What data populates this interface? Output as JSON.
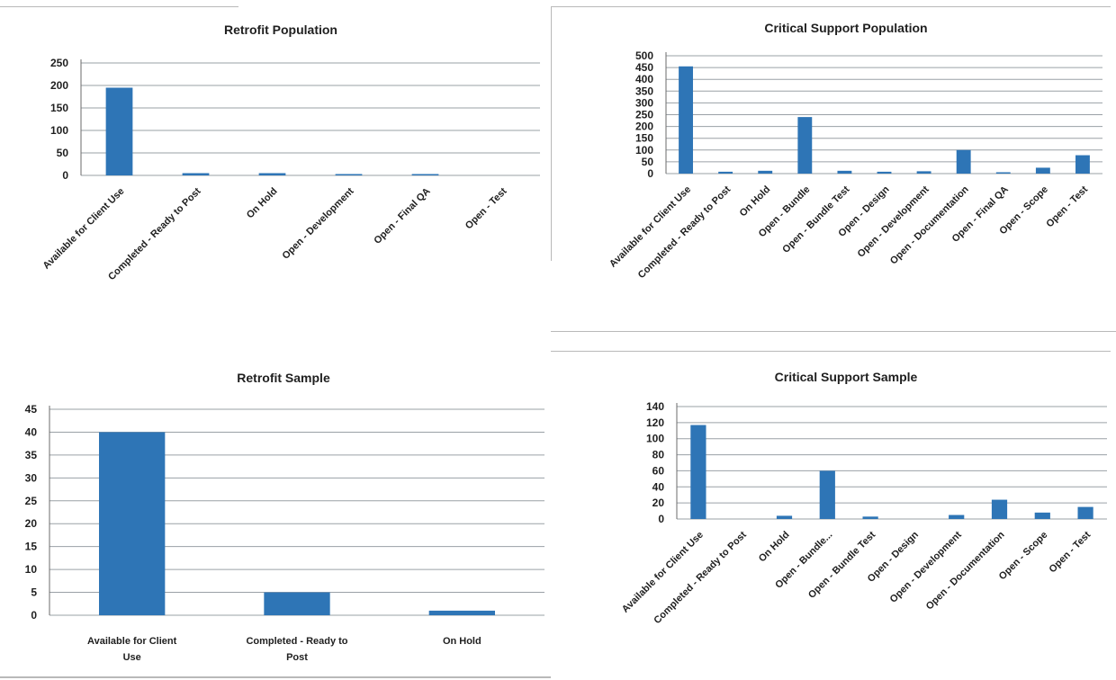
{
  "chart_data": [
    {
      "id": "retrofit-population",
      "type": "bar",
      "title": "Retrofit Population",
      "categories": [
        "Available for Client Use",
        "Completed - Ready to Post",
        "On Hold",
        "Open - Development",
        "Open - Final QA",
        "Open - Test"
      ],
      "values": [
        195,
        5,
        5,
        1,
        3,
        0
      ],
      "yticks": [
        0,
        50,
        100,
        150,
        200,
        250
      ],
      "ylim": [
        0,
        250
      ],
      "grid": true,
      "label_rotation": -45,
      "colors": {
        "bar": "#2e75b6"
      }
    },
    {
      "id": "critical-support-population",
      "type": "bar",
      "title": "Critical Support Population",
      "categories": [
        "Available for Client Use",
        "Completed - Ready to Post",
        "On Hold",
        "Open - Bundle",
        "Open - Bundle Test",
        "Open - Design",
        "Open - Development",
        "Open - Documentation",
        "Open - Final QA",
        "Open - Scope",
        "Open - Test"
      ],
      "values": [
        455,
        8,
        12,
        240,
        12,
        8,
        10,
        100,
        2,
        25,
        78
      ],
      "yticks": [
        0,
        50,
        100,
        150,
        200,
        250,
        300,
        350,
        400,
        450,
        500
      ],
      "ylim": [
        0,
        500
      ],
      "grid": true,
      "label_rotation": -45,
      "colors": {
        "bar": "#2e75b6"
      }
    },
    {
      "id": "retrofit-sample",
      "type": "bar",
      "title": "Retrofit Sample",
      "categories": [
        "Available for Client Use",
        "Completed - Ready to Post",
        "On Hold"
      ],
      "values": [
        40,
        5,
        1
      ],
      "yticks": [
        0,
        5,
        10,
        15,
        20,
        25,
        30,
        35,
        40,
        45
      ],
      "ylim": [
        0,
        45
      ],
      "grid": true,
      "label_rotation": 0,
      "colors": {
        "bar": "#2e75b6"
      }
    },
    {
      "id": "critical-support-sample",
      "type": "bar",
      "title": "Critical Support Sample",
      "categories": [
        "Available for Client Use",
        "Completed - Ready to Post",
        "On Hold",
        "Open - Bundle...",
        "Open - Bundle Test",
        "Open - Design",
        "Open - Development",
        "Open - Documentation",
        "Open - Scope",
        "Open - Test"
      ],
      "values": [
        117,
        0,
        4,
        60,
        3,
        0,
        5,
        24,
        8,
        15
      ],
      "yticks": [
        0,
        20,
        40,
        60,
        80,
        100,
        120,
        140
      ],
      "ylim": [
        0,
        140
      ],
      "grid": true,
      "label_rotation": -45,
      "colors": {
        "bar": "#2e75b6"
      }
    }
  ]
}
